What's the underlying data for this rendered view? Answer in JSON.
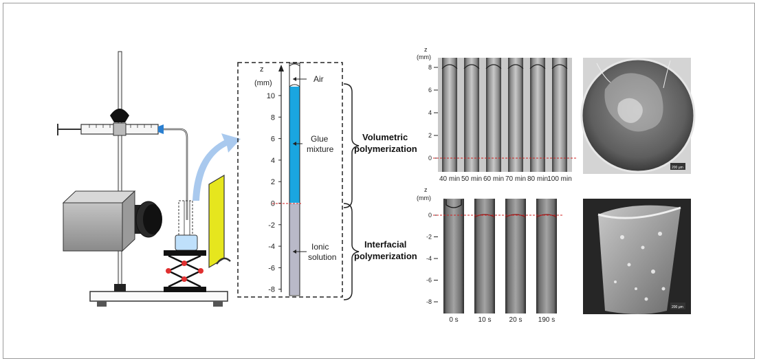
{
  "colors": {
    "glue": "#1aa6e0",
    "ionic": "#b9b9c8",
    "interface_line": "#d02020",
    "screen": "#e6e61e",
    "camera": "#a8a8a8",
    "arrow": "#9ec3ea"
  },
  "axis": {
    "z_label": "z",
    "unit_label": "(mm)",
    "ticks": [
      "10",
      "8",
      "6",
      "4",
      "2",
      "0",
      "-2",
      "-4",
      "-6",
      "-8"
    ]
  },
  "tube_labels": {
    "air": "Air",
    "glue_line1": "Glue",
    "glue_line2": "mixture",
    "ionic_line1": "Ionic",
    "ionic_line2": "solution"
  },
  "braces": {
    "volumetric_line1": "Volumetric",
    "volumetric_line2": "polymerization",
    "interfacial_line1": "Interfacial",
    "interfacial_line2": "polymerization"
  },
  "top_series": {
    "z_label": "z",
    "unit_label": "(mm)",
    "ticks": [
      "8",
      "6",
      "4",
      "2",
      "0"
    ],
    "frames": [
      "40 min",
      "50 min",
      "60 min",
      "70 min",
      "80 min",
      "100 min"
    ]
  },
  "bottom_series": {
    "z_label": "z",
    "unit_label": "(mm)",
    "ticks": [
      "0",
      "-2",
      "-4",
      "-6",
      "-8"
    ],
    "frames": [
      "0 s",
      "10 s",
      "20 s",
      "190 s"
    ]
  },
  "scale_bars": {
    "top": "200 μm",
    "bottom": "200 μm"
  }
}
